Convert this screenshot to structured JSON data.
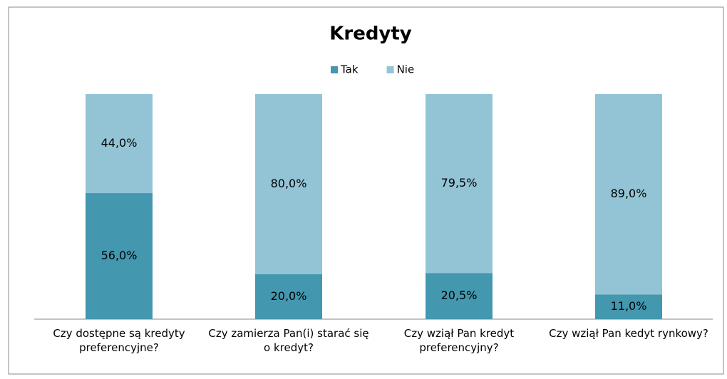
{
  "chart_data": {
    "type": "stacked_bar",
    "title": "Kredyty",
    "categories": [
      "Czy dostępne są kredyty preferencyjne?",
      "Czy zamierza Pan(i) starać się o kredyt?",
      "Czy wziął Pan kredyt preferencyjny?",
      "Czy wziął Pan kedyt rynkowy?"
    ],
    "series": [
      {
        "name": "Tak",
        "color": "#4397ae",
        "values": [
          56,
          20,
          20.5,
          11
        ],
        "value_labels": [
          "56,0%",
          "20,0%",
          "20,5%",
          "11,0%"
        ]
      },
      {
        "name": "Nie",
        "color": "#93c4d6",
        "values": [
          44,
          80,
          79.5,
          89
        ],
        "value_labels": [
          "44,0%",
          "80,0%",
          "79,5%",
          "89,0%"
        ]
      }
    ],
    "ylim": [
      0,
      100
    ],
    "legend": "top"
  }
}
